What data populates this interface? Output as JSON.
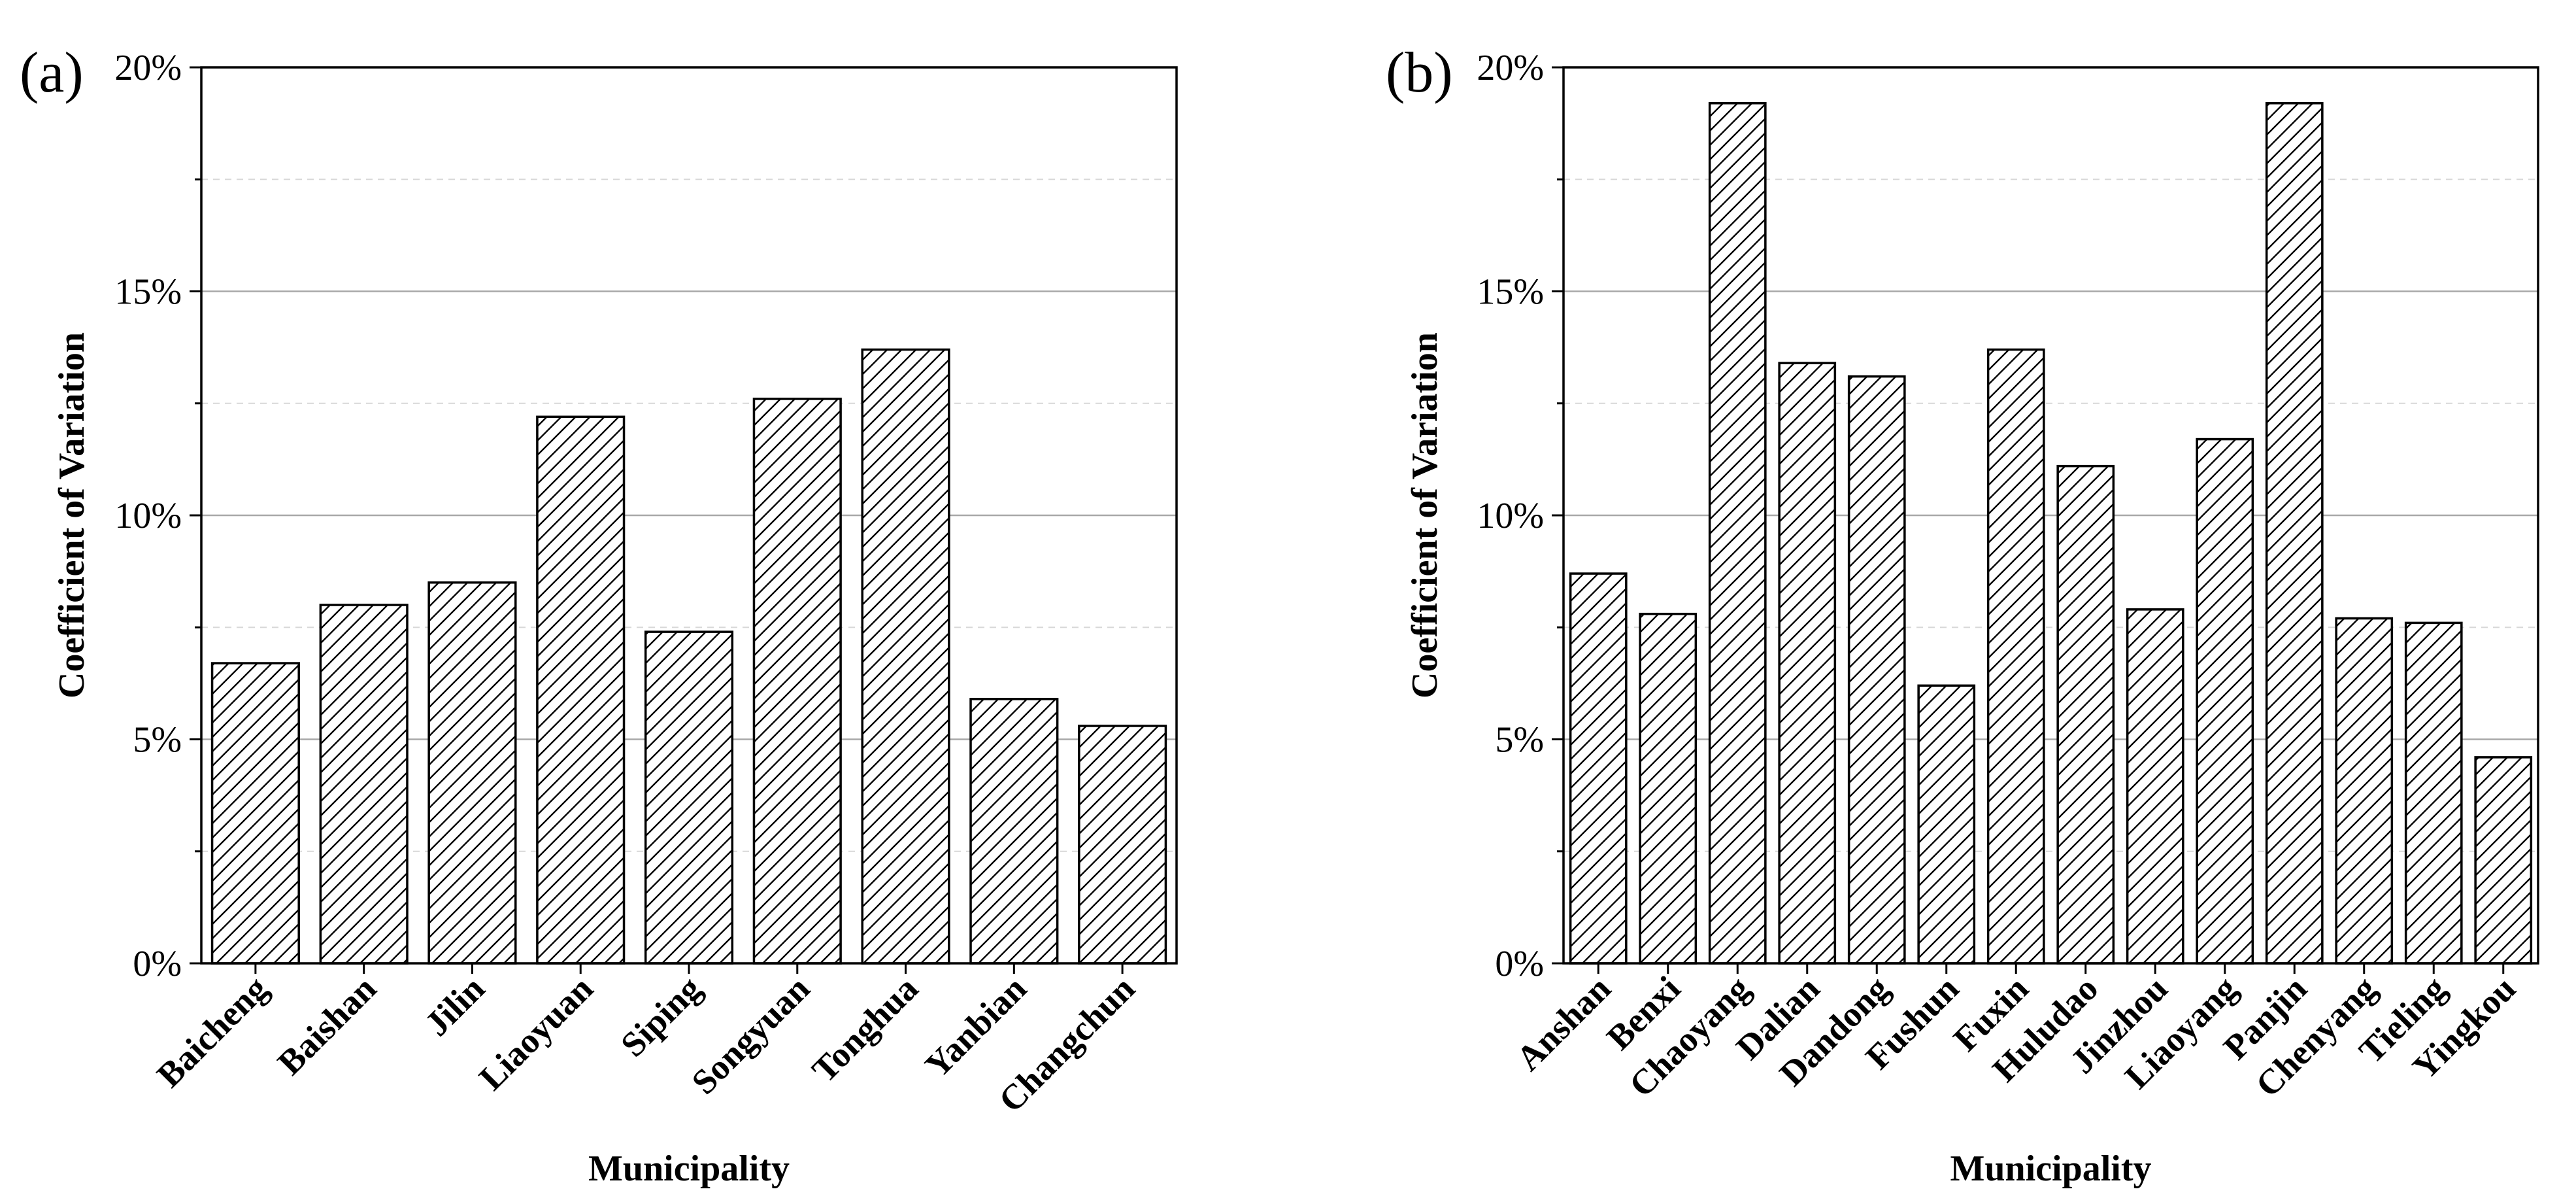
{
  "chart_data": [
    {
      "type": "bar",
      "panel_label": "(a)",
      "categories": [
        "Baicheng",
        "Baishan",
        "Jilin",
        "Liaoyuan",
        "Siping",
        "Songyuan",
        "Tonghua",
        "Yanbian",
        "Changchun"
      ],
      "values": [
        6.7,
        8.0,
        8.5,
        12.2,
        7.4,
        12.6,
        13.7,
        5.9,
        5.3
      ],
      "xlabel": "Municipality",
      "ylabel": "Coefficient of Variation",
      "ylim": [
        0,
        20
      ],
      "yticks": [
        0,
        5,
        10,
        15,
        20
      ],
      "ytick_labels": [
        "0%",
        "5%",
        "10%",
        "15%",
        "20%"
      ],
      "grid": "major solid, minor dashed",
      "bar_fill": "hatched",
      "hatch_color": "#000000"
    },
    {
      "type": "bar",
      "panel_label": "(b)",
      "categories": [
        "Anshan",
        "Benxi",
        "Chaoyang",
        "Dalian",
        "Dandong",
        "Fushun",
        "Fuxin",
        "Huludao",
        "Jinzhou",
        "Liaoyang",
        "Panjin",
        "Chenyang",
        "Tieling",
        "Yingkou"
      ],
      "values": [
        8.7,
        7.8,
        19.2,
        13.4,
        13.1,
        6.2,
        13.7,
        11.1,
        7.9,
        11.7,
        19.2,
        7.7,
        7.6,
        4.6
      ],
      "xlabel": "Municipality",
      "ylabel": "Coefficient of Variation",
      "ylim": [
        0,
        20
      ],
      "yticks": [
        0,
        5,
        10,
        15,
        20
      ],
      "ytick_labels": [
        "0%",
        "5%",
        "10%",
        "15%",
        "20%"
      ],
      "grid": "major solid, minor dashed",
      "bar_fill": "hatched",
      "hatch_color": "#000000"
    }
  ]
}
